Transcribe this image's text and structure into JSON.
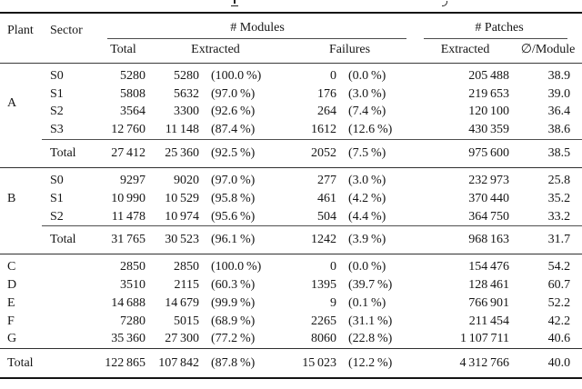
{
  "table": {
    "columns": {
      "plant": "Plant",
      "sector": "Sector",
      "modules_group": "# Modules",
      "patches_group": "# Patches",
      "modules_total": "Total",
      "modules_extracted": "Extracted",
      "modules_failures": "Failures",
      "patches_extracted": "Extracted",
      "patches_per_module": "∅/Module"
    },
    "sections": [
      {
        "plant": "A",
        "rows": [
          {
            "sector": "S0",
            "modules_total": "5280",
            "extracted": "5280",
            "extracted_pct": "(100.0 %)",
            "failures": "0",
            "failures_pct": "(0.0 %)",
            "patches": "205 488",
            "per_module": "38.9"
          },
          {
            "sector": "S1",
            "modules_total": "5808",
            "extracted": "5632",
            "extracted_pct": "(97.0 %)",
            "failures": "176",
            "failures_pct": "(3.0 %)",
            "patches": "219 653",
            "per_module": "39.0"
          },
          {
            "sector": "S2",
            "modules_total": "3564",
            "extracted": "3300",
            "extracted_pct": "(92.6 %)",
            "failures": "264",
            "failures_pct": "(7.4 %)",
            "patches": "120 100",
            "per_module": "36.4"
          },
          {
            "sector": "S3",
            "modules_total": "12 760",
            "extracted": "11 148",
            "extracted_pct": "(87.4 %)",
            "failures": "1612",
            "failures_pct": "(12.6 %)",
            "patches": "430 359",
            "per_module": "38.6"
          }
        ],
        "total": {
          "label": "Total",
          "modules_total": "27 412",
          "extracted": "25 360",
          "extracted_pct": "(92.5 %)",
          "failures": "2052",
          "failures_pct": "(7.5 %)",
          "patches": "975 600",
          "per_module": "38.5"
        }
      },
      {
        "plant": "B",
        "rows": [
          {
            "sector": "S0",
            "modules_total": "9297",
            "extracted": "9020",
            "extracted_pct": "(97.0 %)",
            "failures": "277",
            "failures_pct": "(3.0 %)",
            "patches": "232 973",
            "per_module": "25.8"
          },
          {
            "sector": "S1",
            "modules_total": "10 990",
            "extracted": "10 529",
            "extracted_pct": "(95.8 %)",
            "failures": "461",
            "failures_pct": "(4.2 %)",
            "patches": "370 440",
            "per_module": "35.2"
          },
          {
            "sector": "S2",
            "modules_total": "11 478",
            "extracted": "10 974",
            "extracted_pct": "(95.6 %)",
            "failures": "504",
            "failures_pct": "(4.4 %)",
            "patches": "364 750",
            "per_module": "33.2"
          }
        ],
        "total": {
          "label": "Total",
          "modules_total": "31 765",
          "extracted": "30 523",
          "extracted_pct": "(96.1 %)",
          "failures": "1242",
          "failures_pct": "(3.9 %)",
          "patches": "968 163",
          "per_module": "31.7"
        }
      },
      {
        "plant": null,
        "rows": [
          {
            "plant": "C",
            "sector": "",
            "modules_total": "2850",
            "extracted": "2850",
            "extracted_pct": "(100.0 %)",
            "failures": "0",
            "failures_pct": "(0.0 %)",
            "patches": "154 476",
            "per_module": "54.2"
          },
          {
            "plant": "D",
            "sector": "",
            "modules_total": "3510",
            "extracted": "2115",
            "extracted_pct": "(60.3 %)",
            "failures": "1395",
            "failures_pct": "(39.7 %)",
            "patches": "128 461",
            "per_module": "60.7"
          },
          {
            "plant": "E",
            "sector": "",
            "modules_total": "14 688",
            "extracted": "14 679",
            "extracted_pct": "(99.9 %)",
            "failures": "9",
            "failures_pct": "(0.1 %)",
            "patches": "766 901",
            "per_module": "52.2"
          },
          {
            "plant": "F",
            "sector": "",
            "modules_total": "7280",
            "extracted": "5015",
            "extracted_pct": "(68.9 %)",
            "failures": "2265",
            "failures_pct": "(31.1 %)",
            "patches": "211 454",
            "per_module": "42.2"
          },
          {
            "plant": "G",
            "sector": "",
            "modules_total": "35 360",
            "extracted": "27 300",
            "extracted_pct": "(77.2 %)",
            "failures": "8060",
            "failures_pct": "(22.8 %)",
            "patches": "1 107 711",
            "per_module": "40.6"
          }
        ]
      }
    ],
    "grand_total": {
      "label": "Total",
      "modules_total": "122 865",
      "extracted": "107 842",
      "extracted_pct": "(87.8 %)",
      "failures": "15 023",
      "failures_pct": "(12.2 %)",
      "patches": "4 312 766",
      "per_module": "40.0"
    }
  }
}
